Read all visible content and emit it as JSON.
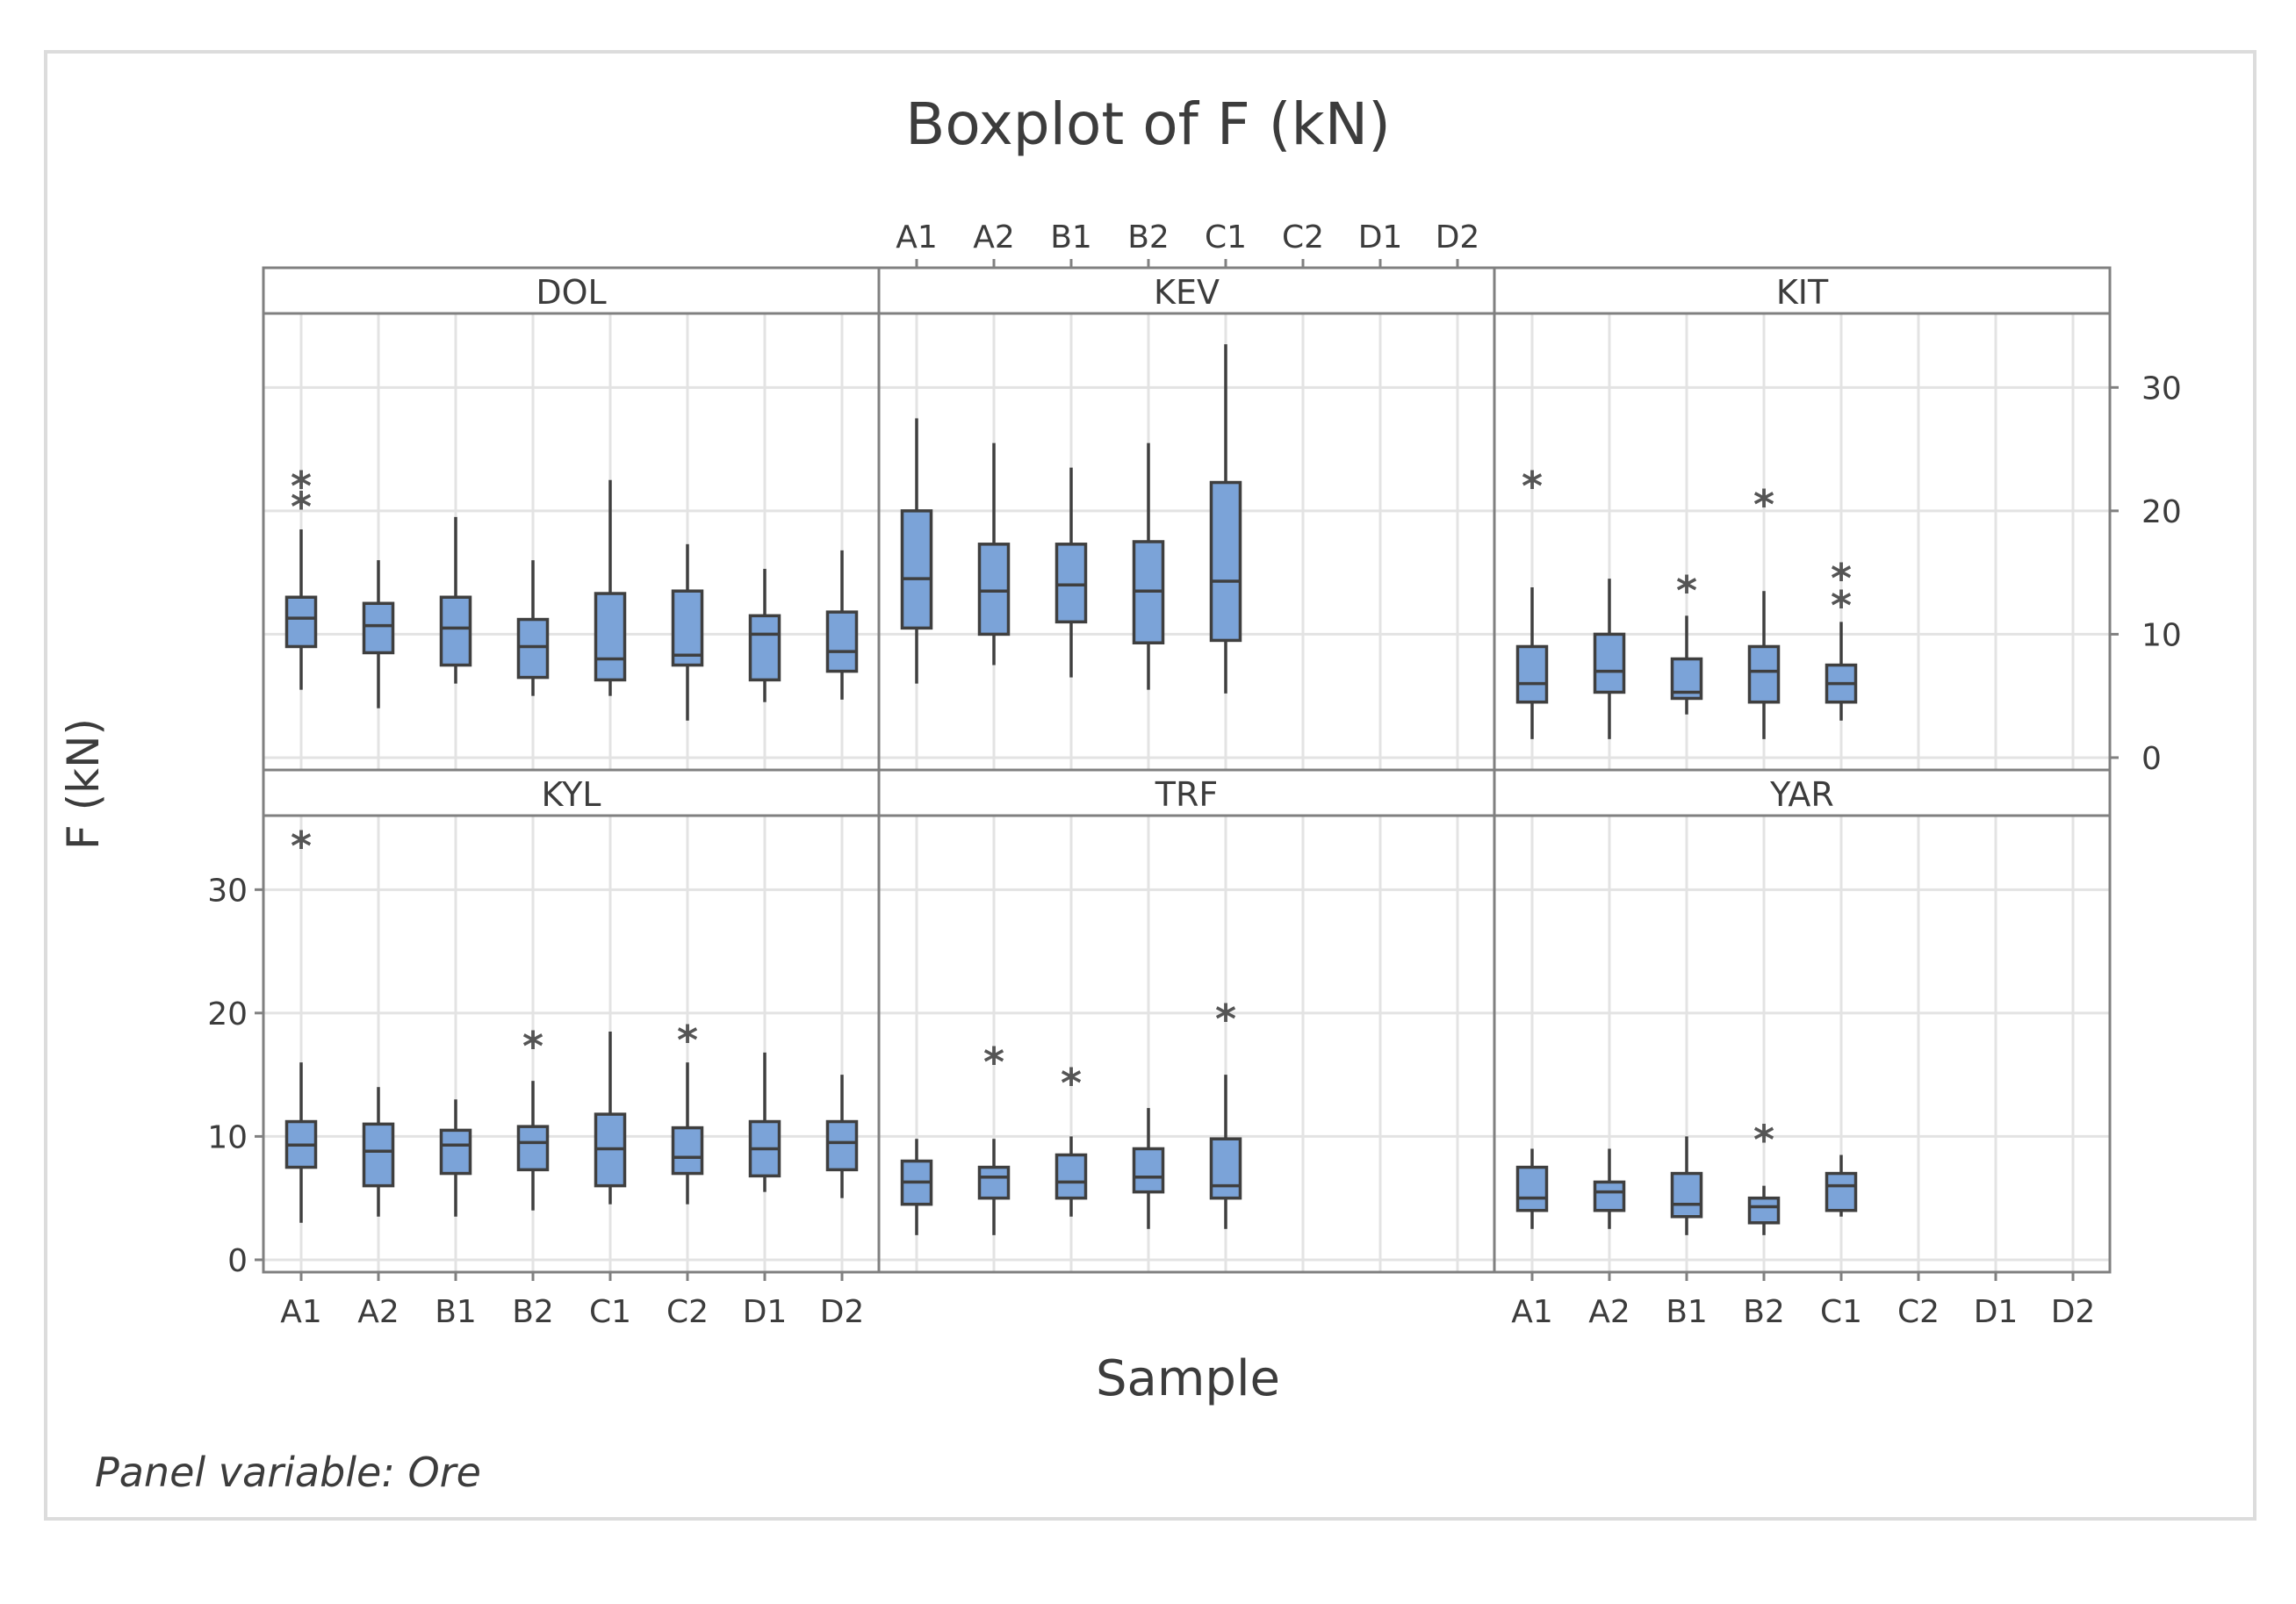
{
  "colors": {
    "box": "#7ba3d8",
    "line": "#3f3f3f",
    "grid": "#e3e3e3",
    "frame": "#808080",
    "outlier": "#555555"
  },
  "chart_data": {
    "type": "boxplot",
    "title": "Boxplot of F (kN)",
    "xlabel": "Sample",
    "ylabel": "F (kN)",
    "panel_note": "Panel variable: Ore",
    "categories": [
      "A1",
      "A2",
      "B1",
      "B2",
      "C1",
      "C2",
      "D1",
      "D2"
    ],
    "ylim": [
      -1,
      36
    ],
    "yticks": [
      0,
      10,
      20,
      30
    ],
    "panels": [
      {
        "name": "DOL",
        "boxes": [
          {
            "cat": "A1",
            "min": 5.5,
            "q1": 9,
            "median": 11.3,
            "q3": 13,
            "max": 18.5,
            "outliers": [
              20.3,
              22
            ]
          },
          {
            "cat": "A2",
            "min": 4,
            "q1": 8.5,
            "median": 10.7,
            "q3": 12.5,
            "max": 16,
            "outliers": []
          },
          {
            "cat": "B1",
            "min": 6,
            "q1": 7.5,
            "median": 10.5,
            "q3": 13,
            "max": 19.5,
            "outliers": []
          },
          {
            "cat": "B2",
            "min": 5,
            "q1": 6.5,
            "median": 9,
            "q3": 11.2,
            "max": 16,
            "outliers": []
          },
          {
            "cat": "C1",
            "min": 5,
            "q1": 6.3,
            "median": 8,
            "q3": 13.3,
            "max": 22.5,
            "outliers": []
          },
          {
            "cat": "C2",
            "min": 3,
            "q1": 7.5,
            "median": 8.3,
            "q3": 13.5,
            "max": 17.3,
            "outliers": []
          },
          {
            "cat": "D1",
            "min": 4.5,
            "q1": 6.3,
            "median": 10,
            "q3": 11.5,
            "max": 15.3,
            "outliers": []
          },
          {
            "cat": "D2",
            "min": 4.7,
            "q1": 7,
            "median": 8.6,
            "q3": 11.8,
            "max": 16.8,
            "outliers": []
          }
        ]
      },
      {
        "name": "KEV",
        "boxes": [
          {
            "cat": "A1",
            "min": 6,
            "q1": 10.5,
            "median": 14.5,
            "q3": 20,
            "max": 27.5,
            "outliers": []
          },
          {
            "cat": "A2",
            "min": 7.5,
            "q1": 10,
            "median": 13.5,
            "q3": 17.3,
            "max": 25.5,
            "outliers": []
          },
          {
            "cat": "B1",
            "min": 6.5,
            "q1": 11,
            "median": 14,
            "q3": 17.3,
            "max": 23.5,
            "outliers": []
          },
          {
            "cat": "B2",
            "min": 5.5,
            "q1": 9.3,
            "median": 13.5,
            "q3": 17.5,
            "max": 25.5,
            "outliers": []
          },
          {
            "cat": "C1",
            "min": 5.2,
            "q1": 9.5,
            "median": 14.3,
            "q3": 22.3,
            "max": 33.5,
            "outliers": []
          }
        ]
      },
      {
        "name": "KIT",
        "boxes": [
          {
            "cat": "A1",
            "min": 1.5,
            "q1": 4.5,
            "median": 6,
            "q3": 9,
            "max": 13.8,
            "outliers": [
              22
            ]
          },
          {
            "cat": "A2",
            "min": 1.5,
            "q1": 5.3,
            "median": 7,
            "q3": 10,
            "max": 14.5,
            "outliers": []
          },
          {
            "cat": "B1",
            "min": 3.5,
            "q1": 4.8,
            "median": 5.3,
            "q3": 8,
            "max": 11.5,
            "outliers": [
              13.5
            ]
          },
          {
            "cat": "B2",
            "min": 1.5,
            "q1": 4.5,
            "median": 7,
            "q3": 9,
            "max": 13.5,
            "outliers": [
              20.5
            ]
          },
          {
            "cat": "C1",
            "min": 3,
            "q1": 4.5,
            "median": 6,
            "q3": 7.5,
            "max": 11,
            "outliers": [
              12.3,
              14.5
            ]
          }
        ]
      },
      {
        "name": "KYL",
        "boxes": [
          {
            "cat": "A1",
            "min": 3,
            "q1": 7.5,
            "median": 9.3,
            "q3": 11.2,
            "max": 16,
            "outliers": [
              33.5
            ]
          },
          {
            "cat": "A2",
            "min": 3.5,
            "q1": 6,
            "median": 8.8,
            "q3": 11,
            "max": 14,
            "outliers": []
          },
          {
            "cat": "B1",
            "min": 3.5,
            "q1": 7,
            "median": 9.3,
            "q3": 10.5,
            "max": 13,
            "outliers": []
          },
          {
            "cat": "B2",
            "min": 4,
            "q1": 7.3,
            "median": 9.5,
            "q3": 10.8,
            "max": 14.5,
            "outliers": [
              17.3
            ]
          },
          {
            "cat": "C1",
            "min": 4.5,
            "q1": 6,
            "median": 9,
            "q3": 11.8,
            "max": 18.5,
            "outliers": []
          },
          {
            "cat": "C2",
            "min": 4.5,
            "q1": 7,
            "median": 8.3,
            "q3": 10.7,
            "max": 16,
            "outliers": [
              17.8
            ]
          },
          {
            "cat": "D1",
            "min": 5.5,
            "q1": 6.8,
            "median": 9,
            "q3": 11.2,
            "max": 16.8,
            "outliers": []
          },
          {
            "cat": "D2",
            "min": 5,
            "q1": 7.3,
            "median": 9.5,
            "q3": 11.2,
            "max": 15,
            "outliers": []
          }
        ]
      },
      {
        "name": "TRF",
        "boxes": [
          {
            "cat": "A1",
            "min": 2,
            "q1": 4.5,
            "median": 6.3,
            "q3": 8,
            "max": 9.8,
            "outliers": []
          },
          {
            "cat": "A2",
            "min": 2,
            "q1": 5,
            "median": 6.7,
            "q3": 7.5,
            "max": 9.8,
            "outliers": [
              16
            ]
          },
          {
            "cat": "B1",
            "min": 3.5,
            "q1": 5,
            "median": 6.3,
            "q3": 8.5,
            "max": 10,
            "outliers": [
              14.3
            ]
          },
          {
            "cat": "B2",
            "min": 2.5,
            "q1": 5.5,
            "median": 6.7,
            "q3": 9,
            "max": 12.3,
            "outliers": []
          },
          {
            "cat": "C1",
            "min": 2.5,
            "q1": 5,
            "median": 6,
            "q3": 9.8,
            "max": 15,
            "outliers": [
              19.5
            ]
          }
        ]
      },
      {
        "name": "YAR",
        "boxes": [
          {
            "cat": "A1",
            "min": 2.5,
            "q1": 4,
            "median": 5,
            "q3": 7.5,
            "max": 9,
            "outliers": []
          },
          {
            "cat": "A2",
            "min": 2.5,
            "q1": 4,
            "median": 5.5,
            "q3": 6.3,
            "max": 9,
            "outliers": []
          },
          {
            "cat": "B1",
            "min": 2,
            "q1": 3.5,
            "median": 4.5,
            "q3": 7,
            "max": 10,
            "outliers": []
          },
          {
            "cat": "B2",
            "min": 2,
            "q1": 3,
            "median": 4.3,
            "q3": 5,
            "max": 6,
            "outliers": [
              9.7
            ]
          },
          {
            "cat": "C1",
            "min": 3.5,
            "q1": 4,
            "median": 6,
            "q3": 7,
            "max": 8.5,
            "outliers": []
          }
        ]
      }
    ]
  }
}
